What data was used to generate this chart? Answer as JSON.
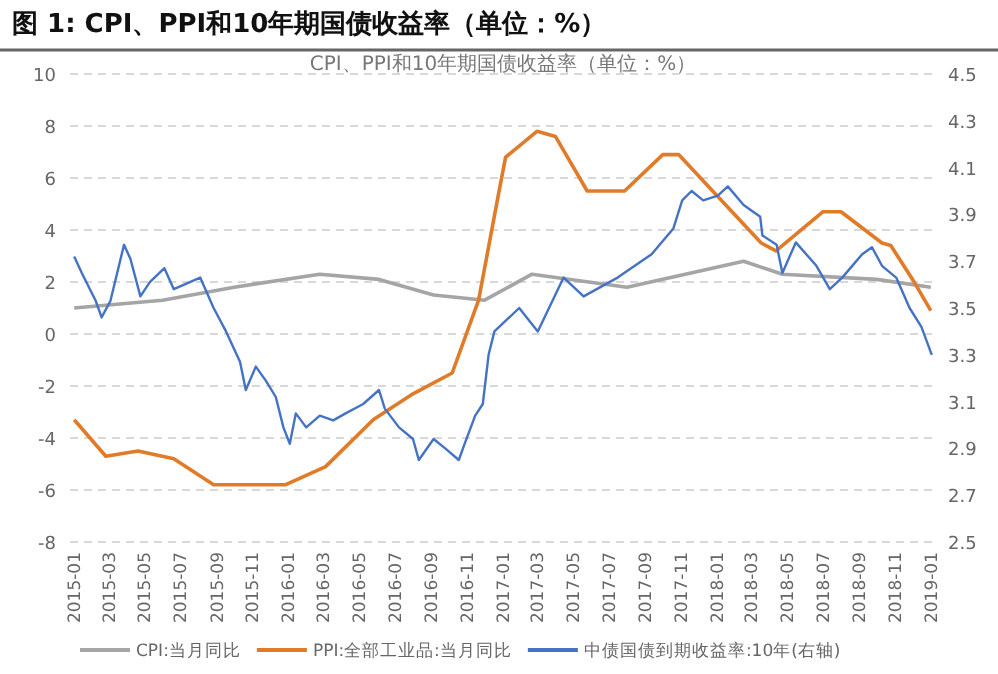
{
  "chart_data": {
    "type": "line",
    "title": "图 1: CPI、PPI和10年期国债收益率（单位：%）",
    "subtitle": "CPI、PPI和10年期国债收益率（单位：%）",
    "xlim": [
      "2014-12-25",
      "2019-01-10"
    ],
    "xticks": [
      "2015-01",
      "2015-03",
      "2015-05",
      "2015-07",
      "2015-09",
      "2015-11",
      "2016-01",
      "2016-03",
      "2016-05",
      "2016-07",
      "2016-09",
      "2016-11",
      "2017-01",
      "2017-03",
      "2017-05",
      "2017-07",
      "2017-09",
      "2017-11",
      "2018-01",
      "2018-03",
      "2018-05",
      "2018-07",
      "2018-09",
      "2018-11",
      "2019-01"
    ],
    "ylim": [
      -8,
      10
    ],
    "yticks": [
      -8,
      -6,
      -4,
      -2,
      0,
      2,
      4,
      6,
      8,
      10
    ],
    "y2lim": [
      2.5,
      4.5
    ],
    "y2ticks": [
      2.5,
      2.7,
      2.9,
      3.1,
      3.3,
      3.5,
      3.7,
      3.9,
      4.1,
      4.3,
      4.5
    ],
    "grid": "y",
    "legend": "bottom",
    "line_style": "solid",
    "marker": "none",
    "series": [
      {
        "name": "CPI:当月同比",
        "color": "#a5a5a5",
        "x": [
          "2015-01-01",
          "2015-06-01",
          "2015-10-01",
          "2016-02-24",
          "2016-06-04",
          "2016-09-05",
          "2016-12-01",
          "2017-02-20",
          "2017-08-01",
          "2018-02-16",
          "2018-04-23",
          "2018-10-01",
          "2019-01-01"
        ],
        "values": [
          1.0,
          1.3,
          1.8,
          2.3,
          2.1,
          1.5,
          1.3,
          2.3,
          1.8,
          2.8,
          2.3,
          2.1,
          1.8
        ]
      },
      {
        "name": "PPI:全部工业品:当月同比",
        "color": "#e07b2a",
        "x": [
          "2015-01-01",
          "2015-02-24",
          "2015-04-20",
          "2015-06-20",
          "2015-08-27",
          "2015-12-27",
          "2016-03-05",
          "2016-05-25",
          "2016-08-01",
          "2016-10-07",
          "2016-11-21",
          "2016-12-25",
          "2017-01-06",
          "2017-03-01",
          "2017-04-01",
          "2017-05-25",
          "2017-07-28",
          "2017-10-01",
          "2017-10-28",
          "2018-03-18",
          "2018-04-12",
          "2018-07-01",
          "2018-08-01",
          "2018-10-10",
          "2018-10-25",
          "2018-12-01",
          "2019-01-01"
        ],
        "values": [
          -3.3,
          -4.7,
          -4.5,
          -4.8,
          -5.8,
          -5.8,
          -5.1,
          -3.3,
          -2.3,
          -1.5,
          1.3,
          5.4,
          6.8,
          7.8,
          7.6,
          5.5,
          5.5,
          6.9,
          6.9,
          3.5,
          3.2,
          4.7,
          4.7,
          3.5,
          3.4,
          2.1,
          0.9
        ]
      },
      {
        "name": "中债国债到期收益率:10年(右轴)",
        "color": "#4472c4",
        "axis": "y2",
        "x": [
          "2015-01-01",
          "2015-01-14",
          "2015-02-07",
          "2015-02-17",
          "2015-03-04",
          "2015-03-27",
          "2015-04-07",
          "2015-04-24",
          "2015-05-10",
          "2015-06-04",
          "2015-06-20",
          "2015-08-04",
          "2015-08-27",
          "2015-09-17",
          "2015-10-11",
          "2015-10-21",
          "2015-11-07",
          "2015-11-24",
          "2015-12-11",
          "2015-12-24",
          "2016-01-04",
          "2016-01-14",
          "2016-02-01",
          "2016-02-24",
          "2016-03-18",
          "2016-04-08",
          "2016-05-08",
          "2016-06-04",
          "2016-06-14",
          "2016-07-08",
          "2016-08-01",
          "2016-08-11",
          "2016-09-05",
          "2016-09-25",
          "2016-10-18",
          "2016-10-28",
          "2016-11-15",
          "2016-11-28",
          "2016-12-08",
          "2016-12-18",
          "2017-01-29",
          "2017-03-02",
          "2017-04-15",
          "2017-05-19",
          "2017-07-16",
          "2017-09-12",
          "2017-10-19",
          "2017-11-03",
          "2017-11-19",
          "2017-12-09",
          "2018-01-03",
          "2018-01-20",
          "2018-02-16",
          "2018-03-16",
          "2018-03-20",
          "2018-04-13",
          "2018-04-23",
          "2018-05-16",
          "2018-06-20",
          "2018-07-13",
          "2018-08-03",
          "2018-09-06",
          "2018-09-23",
          "2018-10-10",
          "2018-11-03",
          "2018-11-26",
          "2018-12-16",
          "2019-01-03"
        ],
        "values": [
          3.72,
          3.65,
          3.53,
          3.46,
          3.53,
          3.77,
          3.71,
          3.55,
          3.61,
          3.67,
          3.58,
          3.63,
          3.5,
          3.4,
          3.27,
          3.15,
          3.25,
          3.19,
          3.12,
          2.99,
          2.92,
          3.05,
          2.99,
          3.04,
          3.02,
          3.05,
          3.09,
          3.15,
          3.07,
          2.99,
          2.94,
          2.85,
          2.94,
          2.9,
          2.85,
          2.92,
          3.04,
          3.09,
          3.3,
          3.4,
          3.5,
          3.4,
          3.63,
          3.55,
          3.63,
          3.73,
          3.84,
          3.96,
          4.0,
          3.96,
          3.98,
          4.02,
          3.94,
          3.89,
          3.81,
          3.77,
          3.65,
          3.78,
          3.68,
          3.58,
          3.63,
          3.73,
          3.76,
          3.68,
          3.63,
          3.5,
          3.42,
          3.3
        ]
      }
    ]
  }
}
